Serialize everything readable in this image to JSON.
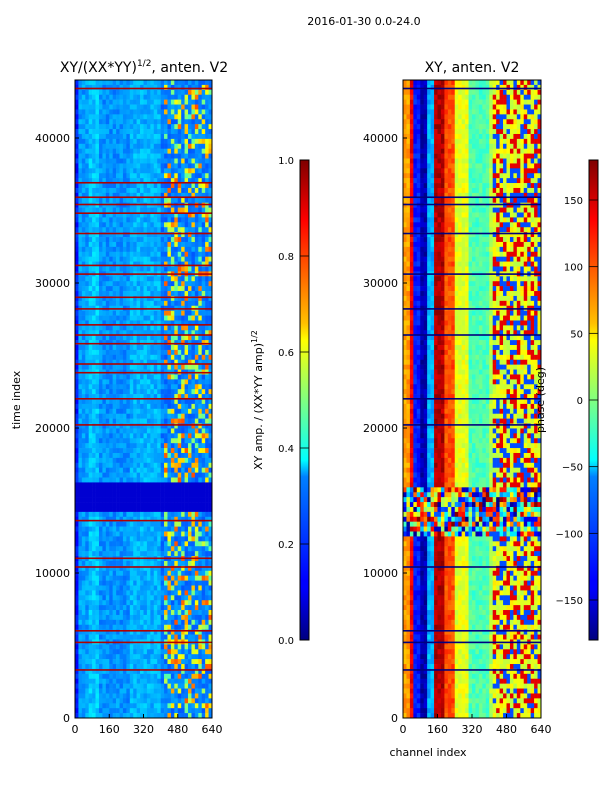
{
  "figure": {
    "suptitle": "2016-01-30 0.0-24.0"
  },
  "chart_data": [
    {
      "type": "heatmap",
      "title": "XY/(XX*YY)¹ᐟ², anten. V2",
      "title_main": "XY/(XX*YY)",
      "title_sup": "1/2",
      "title_tail": ", anten. V2",
      "xlabel": "",
      "ylabel": "time index",
      "xlim": [
        0,
        640
      ],
      "ylim": [
        0,
        44000
      ],
      "xticks": [
        0,
        160,
        320,
        480,
        640
      ],
      "yticks": [
        0,
        10000,
        20000,
        30000,
        40000
      ],
      "colorscale": "jet",
      "colorbar": {
        "label_main": "XY amp. / (XX*YY amp)",
        "label_sup": "1/2",
        "range": [
          0.0,
          1.0
        ],
        "ticks": [
          "0.0",
          "0.2",
          "0.4",
          "0.6",
          "0.8",
          "1.0"
        ],
        "tick_values": [
          0.0,
          0.2,
          0.4,
          0.6,
          0.8,
          1.0
        ]
      },
      "flagged_rows": [
        3300,
        5200,
        6000,
        10400,
        11000,
        13600,
        20200,
        22000,
        23800,
        24400,
        25800,
        26400,
        27100,
        28200,
        29000,
        30600,
        31200,
        33400,
        34800,
        35400,
        35900,
        36900,
        43400
      ]
    },
    {
      "type": "heatmap",
      "title": "XY, anten. V2",
      "xlabel": "channel index",
      "ylabel": "",
      "xlim": [
        0,
        640
      ],
      "ylim": [
        0,
        44000
      ],
      "xticks": [
        0,
        160,
        320,
        480,
        640
      ],
      "yticks": [
        0,
        10000,
        20000,
        30000,
        40000
      ],
      "colorscale": "jet",
      "colorbar": {
        "label": "phase (deg)",
        "range": [
          -180,
          180
        ],
        "ticks": [
          "−150",
          "−100",
          "−50",
          "0",
          "50",
          "100",
          "150"
        ],
        "tick_values": [
          -150,
          -100,
          -50,
          0,
          50,
          100,
          150
        ]
      }
    }
  ]
}
